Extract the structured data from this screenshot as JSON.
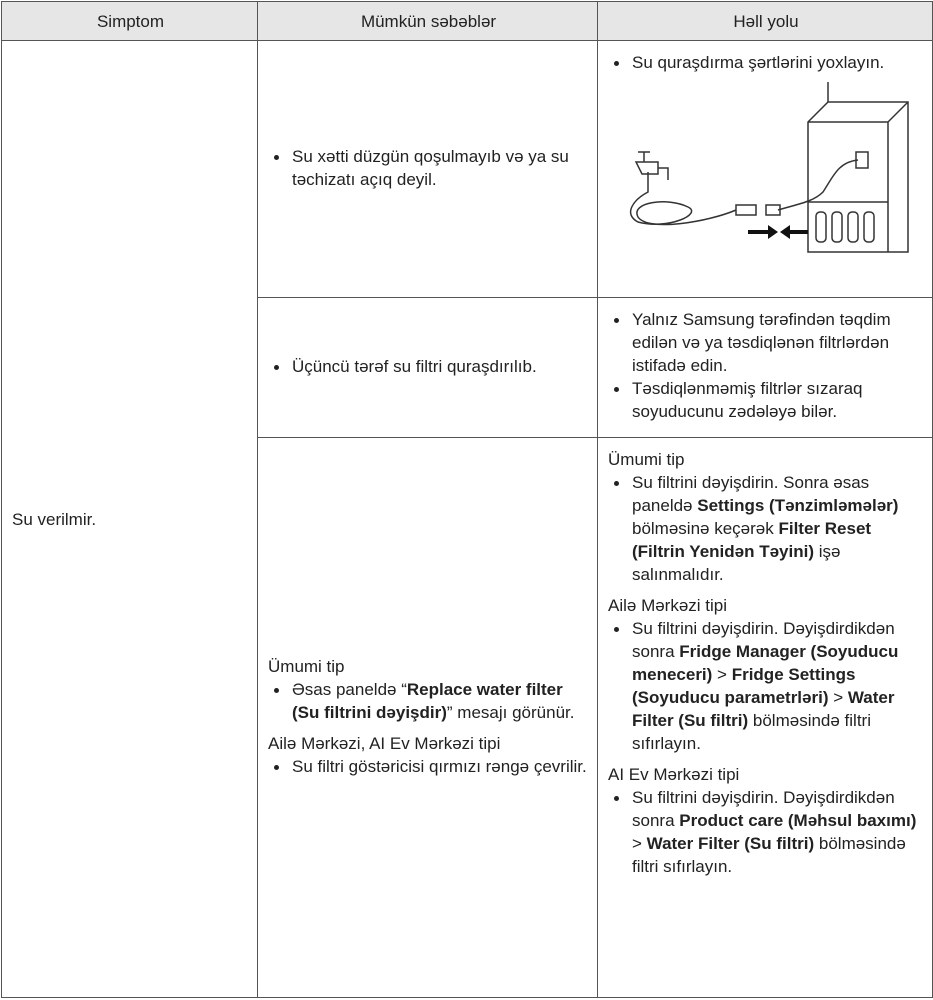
{
  "table": {
    "headers": [
      "Simptom",
      "Mümkün səbəblər",
      "Həll yolu"
    ],
    "symptom": "Su verilmir.",
    "rows": [
      {
        "causes": [
          {
            "bullets": [
              [
                "Su xətti düzgün qoşulmayıb və ya su təchizatı açıq deyil."
              ]
            ]
          }
        ],
        "solutions": [
          {
            "bullets": [
              [
                "Su quraşdırma şərtlərini yoxlayın."
              ]
            ]
          }
        ]
      },
      {
        "causes": [
          {
            "bullets": [
              [
                "Üçüncü tərəf su filtri quraşdırılıb."
              ]
            ]
          }
        ],
        "solutions": [
          {
            "bullets": [
              [
                "Yalnız Samsung tərəfindən təqdim edilən və ya təsdiqlənən filtrlərdən istifadə edin."
              ],
              [
                "Təsdiqlənməmiş filtrlər sızaraq soyuducunu zədələyə bilər."
              ]
            ]
          }
        ]
      },
      {
        "causes": [
          {
            "heading": "Ümumi tip",
            "bullets": [
              [
                "Əsas paneldə “",
                {
                  "text": "Replace water filter (Su filtrini dəyişdir)",
                  "bold": true
                },
                "” mesajı görünür."
              ]
            ]
          },
          {
            "heading": "Ailə Mərkəzi, AI Ev Mərkəzi tipi",
            "bullets": [
              [
                "Su filtri göstəricisi qırmızı rəngə çevrilir."
              ]
            ]
          }
        ],
        "solutions": [
          {
            "heading": "Ümumi tip",
            "bullets": [
              [
                "Su filtrini dəyişdirin. Sonra əsas paneldə ",
                {
                  "text": "Settings (Tənzimləmələr)",
                  "bold": true
                },
                " bölməsinə keçərək ",
                {
                  "text": "Filter Reset (Filtrin Yenidən Təyini)",
                  "bold": true
                },
                " işə salınmalıdır."
              ]
            ]
          },
          {
            "heading": "Ailə Mərkəzi tipi",
            "bullets": [
              [
                "Su filtrini dəyişdirin. Dəyişdirdikdən sonra ",
                {
                  "text": "Fridge Manager (Soyuducu meneceri)",
                  "bold": true
                },
                " > ",
                {
                  "text": "Fridge Settings (Soyuducu parametrləri)",
                  "bold": true
                },
                " > ",
                {
                  "text": "Water Filter (Su filtri)",
                  "bold": true
                },
                " bölməsində filtri sıfırlayın."
              ]
            ]
          },
          {
            "heading": "AI Ev Mərkəzi tipi",
            "bullets": [
              [
                "Su filtrini dəyişdirin. Dəyişdirdikdən sonra ",
                {
                  "text": "Product care (Məhsul baxımı)",
                  "bold": true
                },
                " > ",
                {
                  "text": "Water Filter (Su filtri)",
                  "bold": true
                },
                " bölməsində filtri sıfırlayın."
              ]
            ]
          }
        ]
      }
    ]
  }
}
